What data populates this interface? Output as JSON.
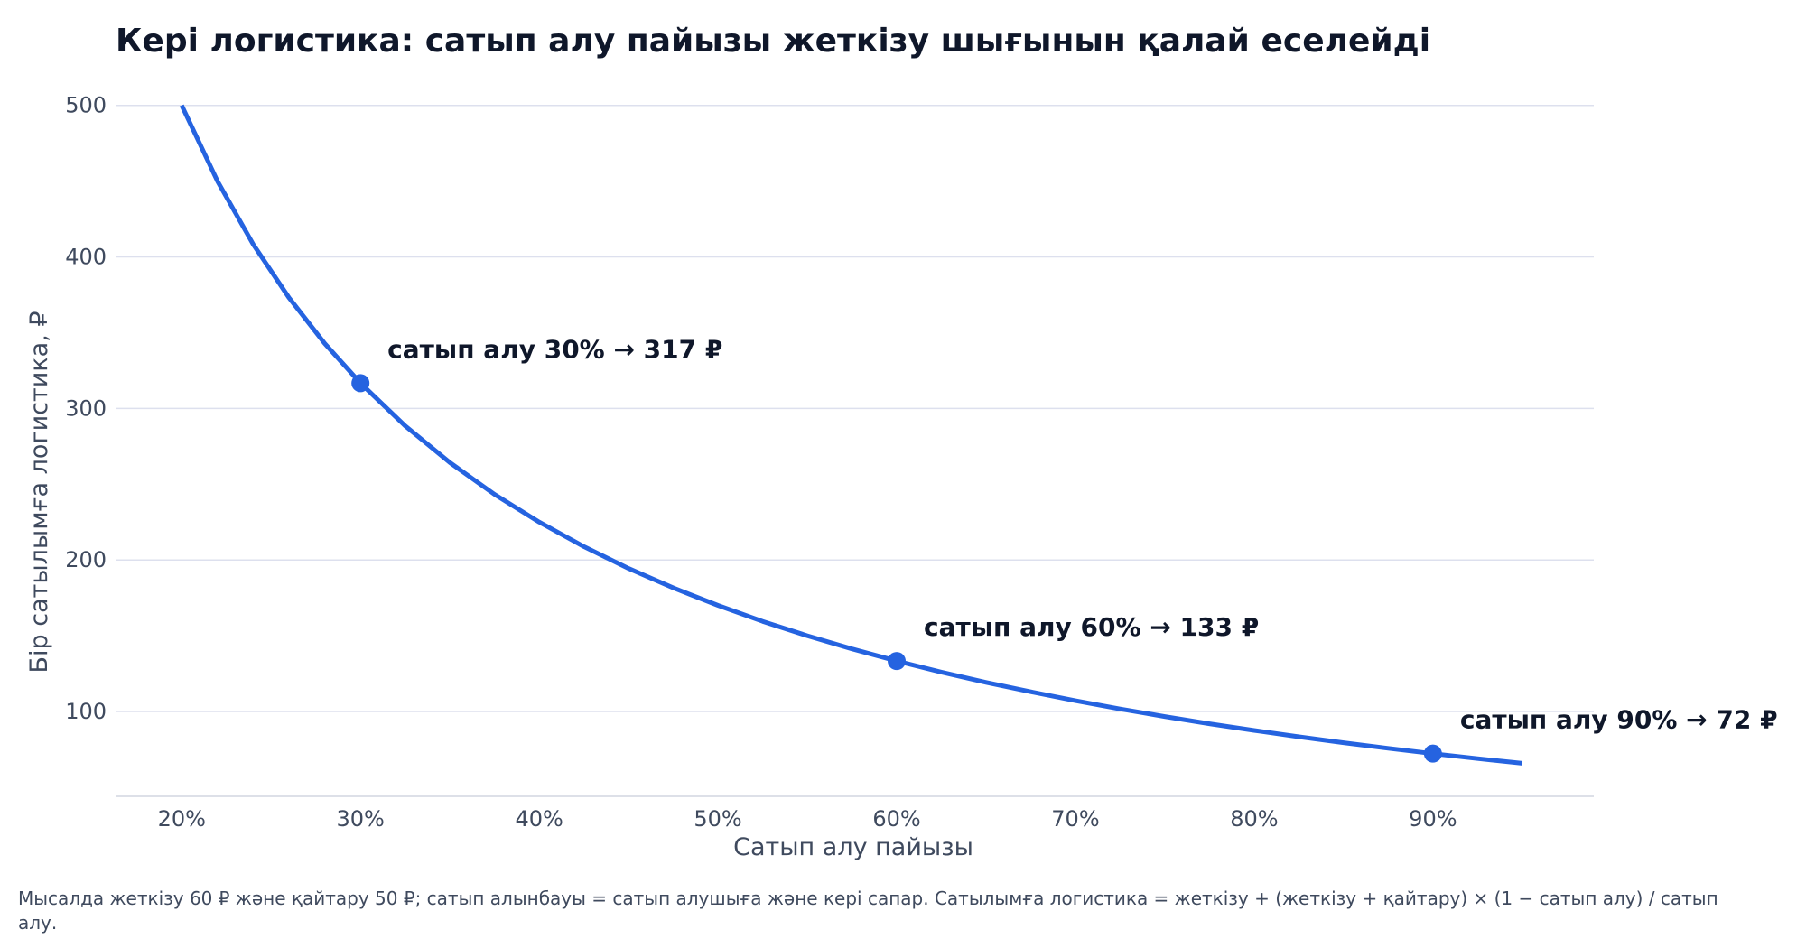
{
  "chart_data": {
    "type": "line",
    "title": "Кері логистика: сатып алу пайызы жеткізу шығынын қалай еселейді",
    "xlabel": "Сатып алу пайызы",
    "ylabel": "Бір сатылымға логистика, ₽",
    "xlim": [
      0.163,
      0.99
    ],
    "ylim": [
      44,
      504
    ],
    "x_ticks": [
      0.2,
      0.3,
      0.4,
      0.5,
      0.6,
      0.7,
      0.8,
      0.9
    ],
    "x_tick_labels": [
      "20%",
      "30%",
      "40%",
      "50%",
      "60%",
      "70%",
      "80%",
      "90%"
    ],
    "y_ticks": [
      100,
      200,
      300,
      400,
      500
    ],
    "y_tick_labels": [
      "100",
      "200",
      "300",
      "400",
      "500"
    ],
    "grid": "horizontal",
    "series": [
      {
        "color": "#2563e0",
        "x": [
          0.2,
          0.22,
          0.24,
          0.26,
          0.28,
          0.3,
          0.325,
          0.35,
          0.375,
          0.4,
          0.425,
          0.45,
          0.475,
          0.5,
          0.525,
          0.55,
          0.575,
          0.6,
          0.625,
          0.65,
          0.675,
          0.7,
          0.725,
          0.75,
          0.775,
          0.8,
          0.825,
          0.85,
          0.875,
          0.9,
          0.925,
          0.95
        ],
        "y": [
          500.0,
          450.0,
          408.3,
          373.1,
          342.9,
          316.7,
          288.5,
          264.3,
          243.3,
          225.0,
          208.8,
          194.4,
          181.6,
          170.0,
          159.5,
          150.0,
          141.3,
          133.3,
          126.0,
          119.2,
          113.0,
          107.1,
          101.7,
          96.7,
          91.9,
          87.5,
          83.3,
          79.4,
          75.7,
          72.2,
          68.9,
          65.8
        ]
      }
    ],
    "highlighted_points": [
      {
        "x": 0.3,
        "y": 316.7,
        "label": "сатып алу 30% → 317 ₽"
      },
      {
        "x": 0.6,
        "y": 133.3,
        "label": "сатып алу 60% → 133 ₽"
      },
      {
        "x": 0.9,
        "y": 72.2,
        "label": "сатып алу 90% → 72 ₽"
      }
    ]
  },
  "footnote": "Мысалда жеткізу 60 ₽ және қайтару 50 ₽; сатып алынбауы = сатып алушыға және кері сапар. Сатылымға логистика = жеткізу + (жеткізу + қайтару) × (1 − сатып алу) / сатып алу."
}
